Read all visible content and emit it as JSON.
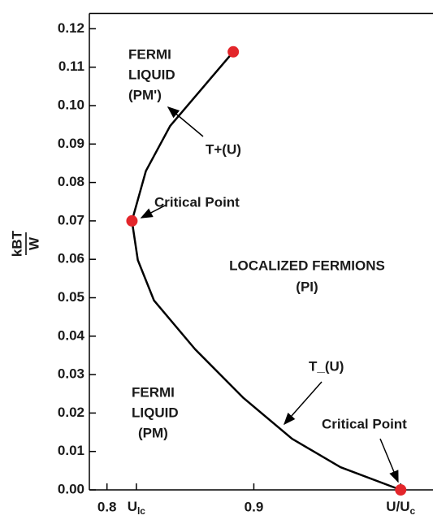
{
  "chart_data": {
    "type": "line",
    "y_label": {
      "main": "kBT",
      "denominator": "W"
    },
    "xlim": [
      0.788,
      1.022
    ],
    "ylim": [
      0,
      0.124
    ],
    "xticks": [
      0.8,
      {
        "value": 0.82,
        "label": "U",
        "sub": "lc"
      },
      0.9,
      {
        "value": 1.0,
        "label": "U/U",
        "sub": "c"
      }
    ],
    "yticks": [
      {
        "value": 0,
        "label": "0.00"
      },
      {
        "value": 0.01,
        "label": "0.01"
      },
      {
        "value": 0.02,
        "label": "0.02"
      },
      {
        "value": 0.03,
        "label": "0.03"
      },
      {
        "value": 0.04,
        "label": "0.04"
      },
      {
        "value": 0.05,
        "label": "0.05"
      },
      {
        "value": 0.06,
        "label": "0.06"
      },
      {
        "value": 0.07,
        "label": "0.07"
      },
      {
        "value": 0.08,
        "label": "0.08"
      },
      {
        "value": 0.09,
        "label": "0.09"
      },
      {
        "value": 0.1,
        "label": "0.10"
      },
      {
        "value": 0.11,
        "label": "0.11"
      },
      {
        "value": 0.12,
        "label": "0.12"
      }
    ],
    "series": [
      {
        "name": "T+(U)",
        "color": "#000000",
        "x": [
          0.886,
          0.843,
          0.8265,
          0.817
        ],
        "values": [
          0.114,
          0.0947,
          0.083,
          0.07
        ]
      },
      {
        "name": "T_(U)",
        "color": "#000000",
        "x": [
          0.817,
          0.821,
          0.832,
          0.86,
          0.893,
          0.926,
          0.959,
          1.0
        ],
        "values": [
          0.07,
          0.0598,
          0.0493,
          0.0366,
          0.0239,
          0.0133,
          0.0059,
          0
        ]
      }
    ],
    "points": {
      "color": "#e3262b",
      "x": [
        0.886,
        0.817,
        1.0
      ],
      "values": [
        0.114,
        0.07,
        0
      ]
    },
    "annotations": [
      "FERMI",
      "LIQUID",
      "(PM')",
      "T+(U)",
      "Critical Point",
      "LOCALIZED FERMIONS",
      "(PI)",
      "T_(U)",
      "FERMI",
      "LIQUID",
      "(PM)",
      "Critical Point"
    ]
  }
}
